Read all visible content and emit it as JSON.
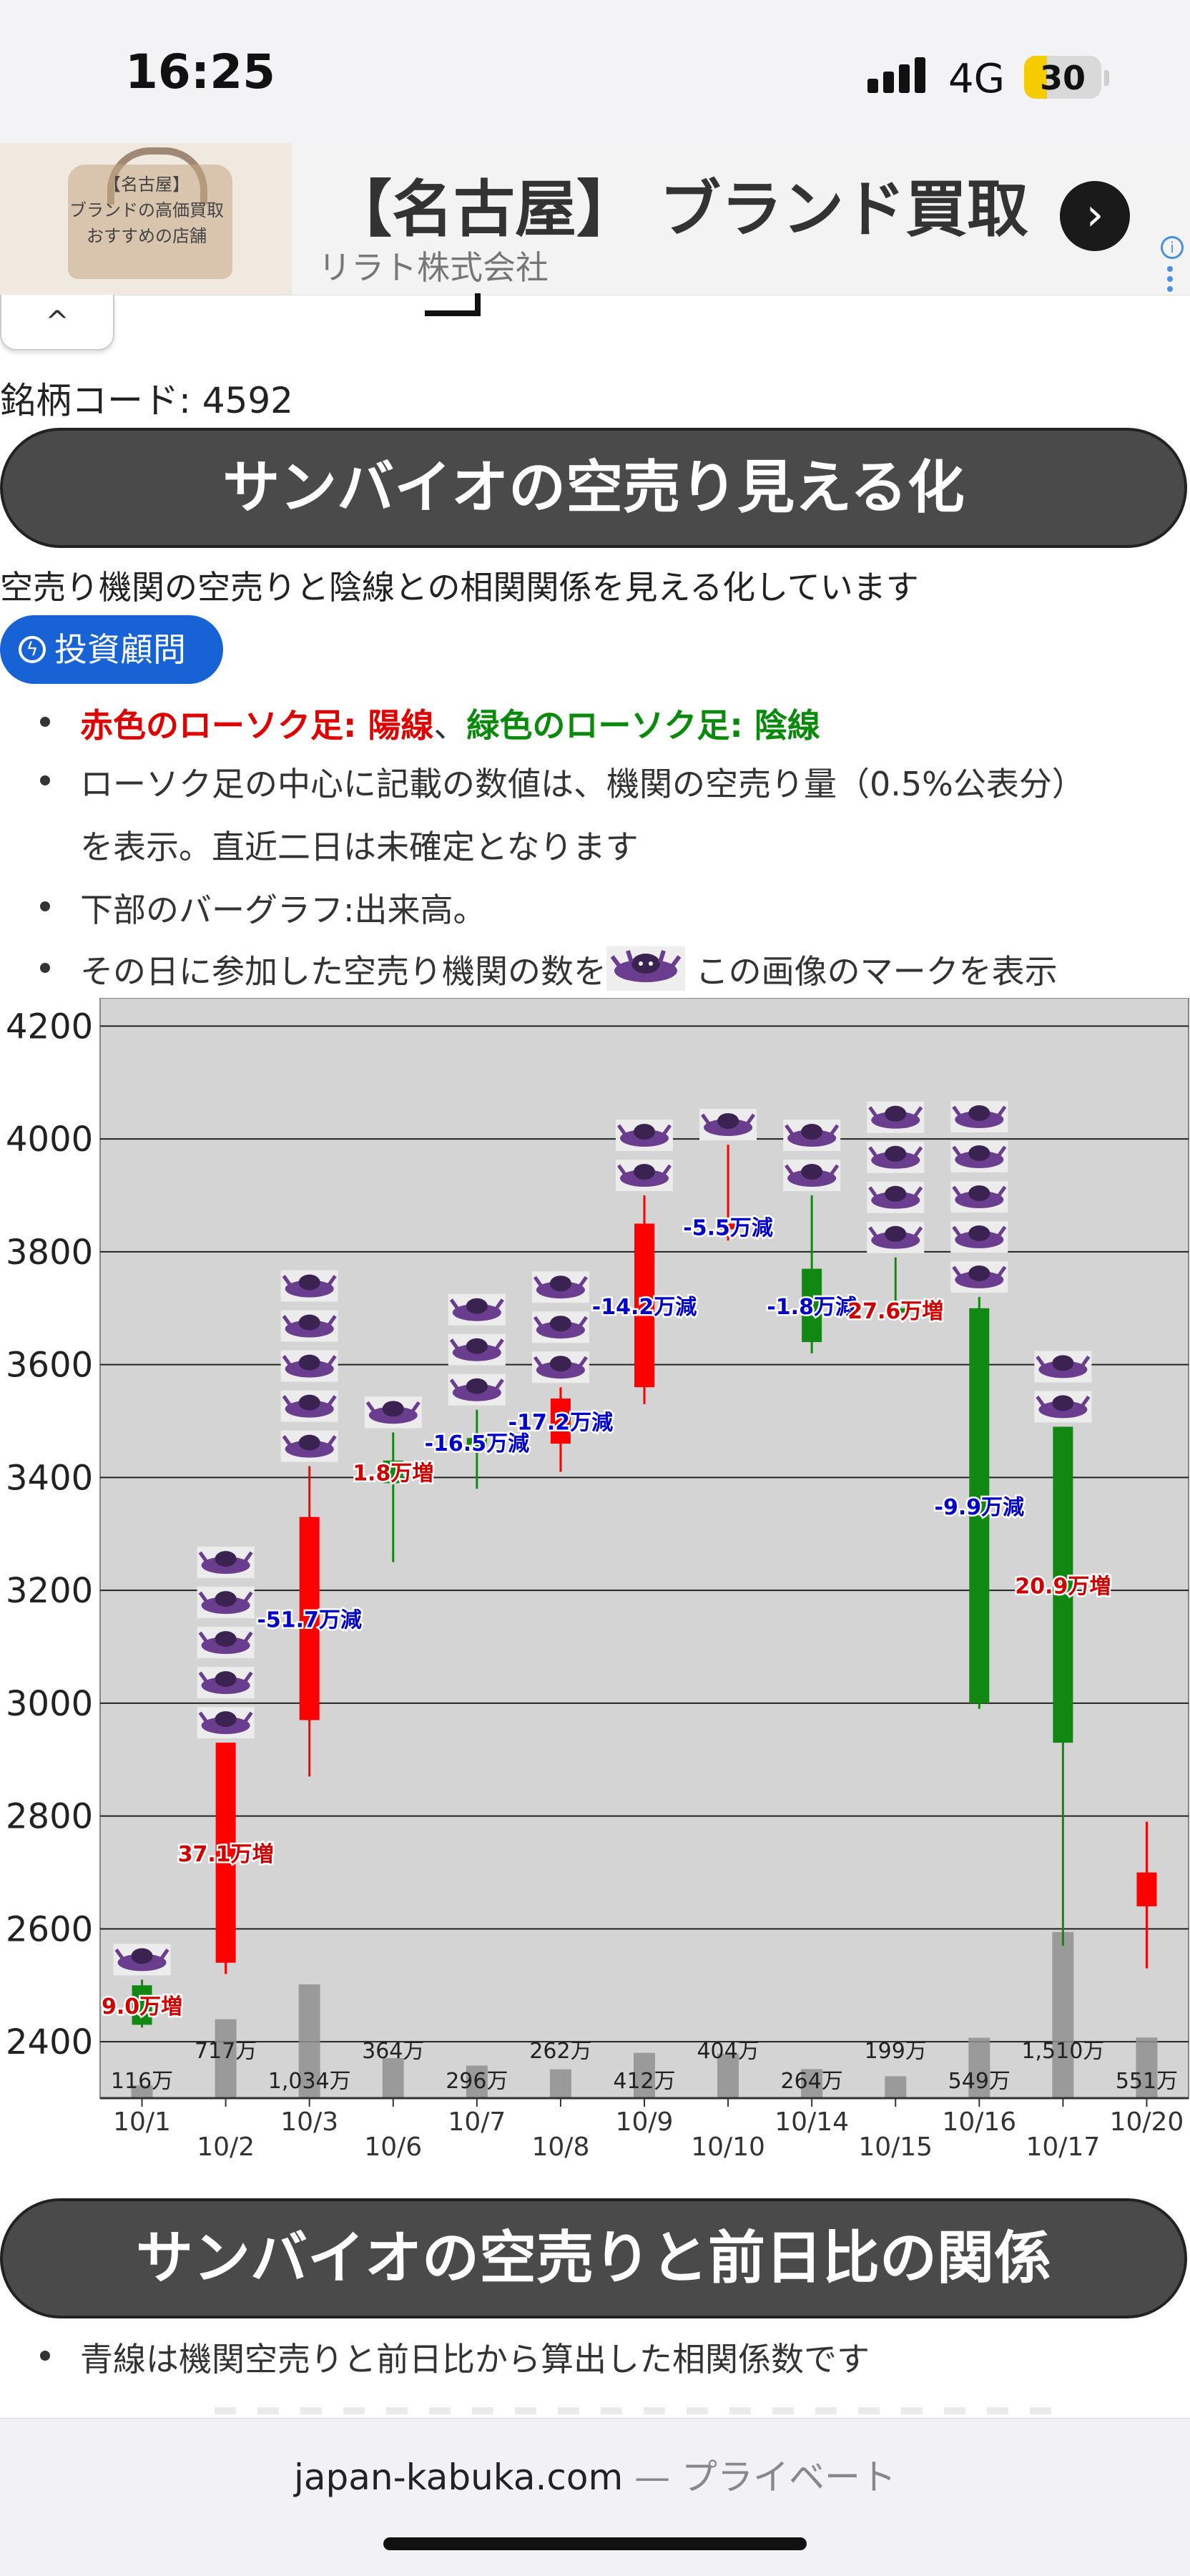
{
  "status": {
    "time": "16:25",
    "network": "4G",
    "battery": "30",
    "battery_level": 0.3
  },
  "ad": {
    "thumb_text": [
      "【名古屋】",
      "ブランドの高価買取",
      "おすすめの店舗"
    ],
    "title": "【名古屋】 ブランド買取",
    "subtitle": "リラト株式会社",
    "arrow": "›",
    "info": "i"
  },
  "collapse": "^",
  "stock_code": "銘柄コード: 4592",
  "section1_title": "サンバイオの空売り見える化",
  "section1_desc": "空売り機関の空売りと陰線との相関関係を見える化しています",
  "advisor_button": "投資顧問",
  "bullets": {
    "b1_red": "赤色のローソク足: 陽線",
    "b1_sep": "、",
    "b1_green": "緑色のローソク足: 陰線",
    "b2_line1": "ローソク足の中心に記載の数値は、機関の空売り量（0.5%公表分）",
    "b2_line2": "を表示。直近二日は未確定となります",
    "b3": "下部のバーグラフ:出来高。",
    "b4_pre": "その日に参加した空売り機関の数を",
    "b4_post": " この画像のマークを表示"
  },
  "colors": {
    "up": "#ff0000",
    "down": "#118811",
    "volume": "#8f8f8f",
    "plot_bg": "#d4d4d4",
    "grid": "#222222",
    "dec_label": "#0000cc",
    "inc_label": "#d00000",
    "banner": "#4a4a4a",
    "button": "#1763d6"
  },
  "chart_data": {
    "type": "candlestick",
    "ylim": [
      2300,
      4250
    ],
    "yticks": [
      2400,
      2600,
      2800,
      3000,
      3200,
      3400,
      3600,
      3800,
      4000,
      4200
    ],
    "volume_max": 2150,
    "grid": true,
    "categories": [
      "10/1",
      "10/2",
      "10/3",
      "10/6",
      "10/7",
      "10/8",
      "10/9",
      "10/10",
      "10/14",
      "10/15",
      "10/16",
      "10/17",
      "10/20"
    ],
    "candles": [
      {
        "date": "10/1",
        "open": 2500,
        "close": 2430,
        "high": 2510,
        "low": 2425
      },
      {
        "date": "10/2",
        "open": 2540,
        "close": 2930,
        "high": 2930,
        "low": 2520
      },
      {
        "date": "10/3",
        "open": 2970,
        "close": 3330,
        "high": 3420,
        "low": 2870
      },
      {
        "date": "10/6",
        "open": 3430,
        "close": 3390,
        "high": 3480,
        "low": 3250
      },
      {
        "date": "10/7",
        "open": 3470,
        "close": 3455,
        "high": 3520,
        "low": 3380
      },
      {
        "date": "10/8",
        "open": 3460,
        "close": 3540,
        "high": 3560,
        "low": 3410
      },
      {
        "date": "10/9",
        "open": 3560,
        "close": 3850,
        "high": 3900,
        "low": 3530
      },
      {
        "date": "10/10",
        "open": 3840,
        "close": 3850,
        "high": 3990,
        "low": 3820
      },
      {
        "date": "10/14",
        "open": 3770,
        "close": 3640,
        "high": 3900,
        "low": 3620
      },
      {
        "date": "10/15",
        "open": 3700,
        "close": 3695,
        "high": 3790,
        "low": 3680
      },
      {
        "date": "10/16",
        "open": 3700,
        "close": 3000,
        "high": 3720,
        "low": 2990
      },
      {
        "date": "10/17",
        "open": 3490,
        "close": 2930,
        "high": 3490,
        "low": 2570
      },
      {
        "date": "10/20",
        "open": 2640,
        "close": 2700,
        "high": 2790,
        "low": 2530
      }
    ],
    "volume": [
      116,
      717,
      1034,
      364,
      296,
      262,
      412,
      404,
      264,
      199,
      549,
      1510,
      551
    ],
    "volume_labels": [
      "116万",
      "717万",
      "1,034万",
      "364万",
      "296万",
      "262万",
      "412万",
      "404万",
      "264万",
      "199万",
      "549万",
      "1,510万",
      "551万"
    ],
    "short_labels": [
      "9.0万増",
      "37.1万増",
      "-51.7万減",
      "1.8万増",
      "-16.5万減",
      "-17.2万減",
      "-14.2万減",
      "-5.5万減",
      "-1.8万減",
      "27.6万増",
      "-9.9万減",
      "20.9万増",
      ""
    ],
    "institution_counts": [
      1,
      5,
      5,
      1,
      3,
      3,
      2,
      1,
      2,
      4,
      5,
      2,
      0
    ]
  },
  "section2_title": "サンバイオの空売りと前日比の関係",
  "section2_bullet": "青線は機関空売りと前日比から算出した相関係数です",
  "footer": {
    "domain": "japan-kabuka.com",
    "private": " — プライベート"
  }
}
